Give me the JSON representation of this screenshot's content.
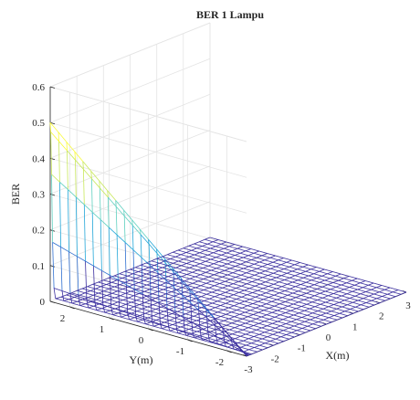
{
  "chart_data": {
    "type": "surface",
    "title": "BER 1 Lampu",
    "xlabel": "X(m)",
    "ylabel": "Y(m)",
    "zlabel": "BER",
    "xlim": [
      -3,
      3
    ],
    "ylim": [
      -2.5,
      2.5
    ],
    "zlim": [
      0,
      0.6
    ],
    "x_ticks": [
      "-3",
      "-2",
      "-1",
      "0",
      "1",
      "2",
      "3"
    ],
    "y_ticks": [
      "-2",
      "-1",
      "0",
      "1",
      "2"
    ],
    "z_ticks": [
      "0",
      "0.1",
      "0.2",
      "0.3",
      "0.4",
      "0.5",
      "0.6"
    ],
    "grid": true,
    "colormap": [
      "#3b2f9f",
      "#2f6fd0",
      "#22a6d8",
      "#5fd0c0",
      "#c8e85a",
      "#f9fa3c"
    ],
    "surface": {
      "description": "BER near 0 over most of the X-Y plane, rising steeply toward 0.5 along the x = -3 edge",
      "x_edge_value_at_y_max": 0.5,
      "x_edge_value_at_y_min": 0.0,
      "floor_value": 0.0
    }
  }
}
